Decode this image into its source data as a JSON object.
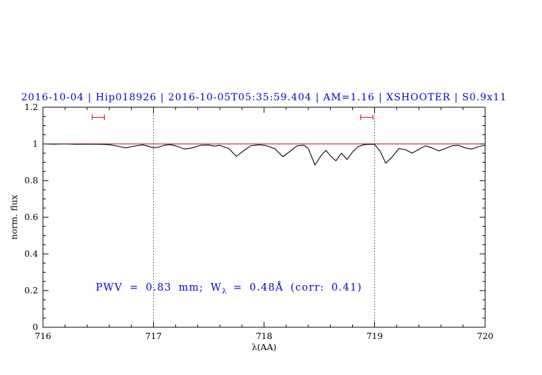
{
  "chart_data": {
    "type": "line",
    "title": "2016-10-04 | Hip018926 | 2016-10-05T05:35:59.404 | AM=1.16 | XSHOOTER | S0.9x11",
    "title_color": "#0000dd",
    "xlabel": "λ(AA)",
    "ylabel": "norm. flux",
    "xlim": [
      716,
      720
    ],
    "ylim": [
      0,
      1.2
    ],
    "grid": false,
    "x_ticks": [
      716,
      717,
      718,
      719,
      720
    ],
    "x_tick_labels": [
      "716",
      "717",
      "718",
      "719",
      "720"
    ],
    "x_minor_step": 0.2,
    "y_ticks": [
      0,
      0.2,
      0.4,
      0.6,
      0.8,
      1,
      1.2
    ],
    "y_tick_labels": [
      "0",
      "0.2",
      "0.4",
      "0.6",
      "0.8",
      "1",
      "1.2"
    ],
    "y_minor_step": 0.05,
    "vlines": {
      "x": [
        717,
        719
      ],
      "style": "dotted",
      "color": "#000000"
    },
    "continuum": {
      "y": 1.0,
      "color": "#cc0000"
    },
    "markers": {
      "color": "#cc0000",
      "items": [
        {
          "x": 716.5,
          "y": 1.145,
          "halfwidth": 0.055
        },
        {
          "x": 718.93,
          "y": 1.145,
          "halfwidth": 0.055
        }
      ]
    },
    "annotation": "PWV = 0.83 mm; W_λ = 0.48Å (corr: 0.41)",
    "annotation_parts": {
      "pre": "PWV = 0.83 mm; W",
      "sub": "λ",
      "post": " = 0.48Å (corr: 0.41)"
    },
    "annotation_color": "#0000dd",
    "series": [
      {
        "name": "spectrum",
        "color": "#000000",
        "x": [
          716.0,
          716.1,
          716.2,
          716.3,
          716.4,
          716.5,
          716.6,
          716.7,
          716.75,
          716.8,
          716.9,
          716.95,
          717.0,
          717.05,
          717.1,
          717.15,
          717.2,
          717.28,
          717.35,
          717.42,
          717.5,
          717.55,
          717.6,
          717.68,
          717.75,
          717.82,
          717.88,
          717.95,
          718.0,
          718.05,
          718.1,
          718.17,
          718.24,
          718.3,
          718.36,
          718.4,
          718.46,
          718.52,
          718.56,
          718.6,
          718.65,
          718.7,
          718.75,
          718.8,
          718.85,
          718.9,
          718.95,
          719.0,
          719.05,
          719.1,
          719.16,
          719.22,
          719.28,
          719.34,
          719.4,
          719.46,
          719.52,
          719.58,
          719.64,
          719.7,
          719.76,
          719.82,
          719.88,
          719.94,
          720.0
        ],
        "y": [
          1.0,
          0.999,
          1.0,
          0.998,
          0.999,
          0.998,
          0.996,
          0.985,
          0.978,
          0.985,
          0.995,
          0.988,
          0.979,
          0.983,
          0.993,
          0.996,
          0.99,
          0.972,
          0.978,
          0.992,
          0.994,
          0.988,
          0.992,
          0.975,
          0.932,
          0.965,
          0.99,
          0.995,
          0.993,
          0.985,
          0.972,
          0.93,
          0.962,
          0.99,
          0.993,
          0.975,
          0.885,
          0.94,
          0.965,
          0.935,
          0.908,
          0.95,
          0.915,
          0.955,
          0.985,
          0.995,
          0.998,
          0.997,
          0.96,
          0.895,
          0.93,
          0.975,
          0.968,
          0.95,
          0.97,
          0.99,
          0.978,
          0.962,
          0.975,
          0.99,
          0.992,
          0.978,
          0.972,
          0.985,
          0.993
        ]
      }
    ]
  }
}
